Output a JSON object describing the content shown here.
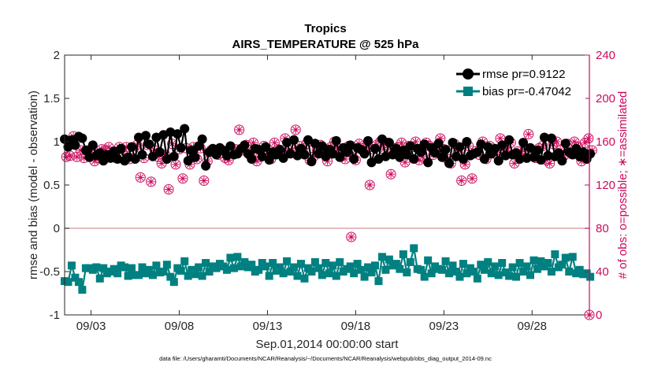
{
  "chart_data": {
    "type": "line",
    "title": "Tropics",
    "subtitle": "AIRS_TEMPERATURE @ 525 hPa",
    "xlabel": "Sep.01,2014 00:00:00 start",
    "ylabel": "rmse and bias (model - observation)",
    "ylabel_right": "# of obs: o=possible; ∗=assimilated",
    "footnote": "data file: /Users/gharamti/Documents/NCAR/Reanalysis/~/Documents/NCAR/Reanalysis/webpub/obs_diag_output_2014-09.nc",
    "xlim": [
      1.5,
      31.25
    ],
    "ylim": [
      -1,
      2
    ],
    "ylim_right": [
      0,
      240
    ],
    "x_ticks": [
      3,
      8,
      13,
      18,
      23,
      28
    ],
    "x_tick_labels": [
      "09/03",
      "09/08",
      "09/13",
      "09/18",
      "09/23",
      "09/28"
    ],
    "y_ticks": [
      -1,
      -0.5,
      0,
      0.5,
      1,
      1.5,
      2
    ],
    "y_tick_labels": [
      "-1",
      "-0.5",
      "0",
      "0.5",
      "1",
      "1.5",
      "2"
    ],
    "y_ticks_right": [
      0,
      40,
      80,
      120,
      160,
      200,
      240
    ],
    "y_tick_labels_right": [
      "0",
      "40",
      "80",
      "120",
      "160",
      "200",
      "240"
    ],
    "zero_line": 0,
    "colors": {
      "rmse": "#000000",
      "bias": "#008080",
      "obs": "#cc0a5c",
      "zero": "#d8a8a8",
      "axis": "#262626"
    },
    "legend_position": "top-right",
    "series": [
      {
        "name": "rmse pr=0.9122",
        "axis": "left",
        "marker": "circle",
        "values": [
          1.03,
          0.94,
          1.02,
          0.96,
          1.06,
          1.04,
          0.9,
          0.82,
          0.96,
          0.84,
          0.87,
          0.78,
          0.85,
          0.81,
          0.89,
          0.8,
          0.92,
          0.78,
          0.82,
          0.94,
          0.8,
          1.05,
          0.85,
          1.07,
          0.97,
          0.83,
          1.05,
          0.88,
          1.08,
          0.8,
          1.11,
          0.83,
          1.09,
          0.93,
          1.15,
          0.78,
          0.9,
          0.82,
          0.95,
          1.03,
          0.72,
          0.88,
          0.92,
          0.85,
          0.93,
          0.9,
          0.84,
          0.95,
          0.85,
          0.86,
          0.92,
          0.96,
          0.86,
          0.8,
          0.92,
          0.91,
          0.83,
          0.94,
          0.79,
          0.88,
          0.85,
          0.91,
          0.81,
          0.99,
          0.86,
          1.02,
          0.84,
          0.92,
          0.85,
          1.02,
          0.77,
          0.98,
          0.86,
          0.95,
          0.83,
          0.91,
          0.86,
          1.01,
          0.82,
          0.93,
          0.88,
          0.96,
          0.8,
          0.93,
          0.91,
          0.86,
          1.01,
          0.76,
          0.92,
          0.8,
          1.03,
          0.83,
          0.99,
          0.85,
          0.92,
          0.82,
          0.9,
          0.85,
          0.95,
          0.8,
          0.92,
          0.88,
          0.97,
          0.76,
          0.93,
          0.87,
          0.98,
          0.82,
          0.91,
          0.75,
          0.99,
          0.83,
          0.94,
          0.8,
          1.0,
          0.84,
          0.86,
          0.88,
          0.97,
          0.8,
          0.94,
          0.86,
          0.92,
          0.78,
          0.96,
          0.84,
          1.02,
          0.85,
          0.87,
          0.8,
          0.99,
          0.81,
          0.93,
          0.82,
          0.9,
          0.79,
          1.05,
          0.84,
          1.04,
          0.83,
          0.87,
          0.78,
          0.98,
          0.88,
          0.85,
          0.92,
          0.83,
          0.88,
          0.8,
          0.86
        ],
        "x_start": 1.5,
        "x_step": 0.2
      },
      {
        "name": "bias pr=-0.47042",
        "axis": "left",
        "marker": "square",
        "values": [
          -0.61,
          -0.62,
          -0.43,
          -0.57,
          -0.62,
          -0.71,
          -0.46,
          -0.46,
          -0.48,
          -0.45,
          -0.58,
          -0.46,
          -0.52,
          -0.5,
          -0.47,
          -0.52,
          -0.43,
          -0.45,
          -0.55,
          -0.46,
          -0.54,
          -0.54,
          -0.45,
          -0.52,
          -0.48,
          -0.54,
          -0.43,
          -0.51,
          -0.5,
          -0.42,
          -0.56,
          -0.62,
          -0.46,
          -0.49,
          -0.38,
          -0.55,
          -0.48,
          -0.53,
          -0.45,
          -0.55,
          -0.4,
          -0.5,
          -0.44,
          -0.46,
          -0.41,
          -0.44,
          -0.48,
          -0.34,
          -0.46,
          -0.33,
          -0.44,
          -0.39,
          -0.45,
          -0.42,
          -0.5,
          -0.48,
          -0.4,
          -0.44,
          -0.55,
          -0.4,
          -0.49,
          -0.45,
          -0.52,
          -0.38,
          -0.5,
          -0.45,
          -0.55,
          -0.41,
          -0.58,
          -0.46,
          -0.5,
          -0.39,
          -0.46,
          -0.54,
          -0.4,
          -0.52,
          -0.43,
          -0.55,
          -0.39,
          -0.5,
          -0.47,
          -0.44,
          -0.52,
          -0.41,
          -0.48,
          -0.56,
          -0.45,
          -0.51,
          -0.43,
          -0.61,
          -0.33,
          -0.48,
          -0.36,
          -0.43,
          -0.41,
          -0.47,
          -0.3,
          -0.51,
          -0.39,
          -0.23,
          -0.47,
          -0.48,
          -0.56,
          -0.37,
          -0.52,
          -0.44,
          -0.47,
          -0.48,
          -0.38,
          -0.52,
          -0.43,
          -0.5,
          -0.56,
          -0.41,
          -0.52,
          -0.46,
          -0.5,
          -0.58,
          -0.42,
          -0.48,
          -0.39,
          -0.52,
          -0.44,
          -0.54,
          -0.4,
          -0.51,
          -0.55,
          -0.45,
          -0.56,
          -0.4,
          -0.5,
          -0.44,
          -0.54,
          -0.37,
          -0.47,
          -0.38,
          -0.44,
          -0.4,
          -0.5,
          -0.3,
          -0.45,
          -0.42,
          -0.34,
          -0.5,
          -0.33,
          -0.52,
          -0.48,
          -0.53,
          -0.52,
          -0.56
        ],
        "x_start": 1.5,
        "x_step": 0.2
      },
      {
        "name": "# of obs possible",
        "axis": "right",
        "marker": "circle-open",
        "values": [
          146,
          147,
          165,
          146,
          152,
          145,
          152,
          152,
          142,
          145,
          153,
          152,
          155,
          148,
          145,
          155,
          149,
          155,
          144,
          153,
          157,
          127,
          145,
          157,
          123,
          152,
          146,
          140,
          148,
          116,
          158,
          139,
          153,
          126,
          154,
          139,
          155,
          144,
          154,
          124,
          142,
          152,
          150,
          148,
          152,
          145,
          143,
          151,
          153,
          171,
          152,
          157,
          148,
          159,
          142,
          146,
          156,
          149,
          144,
          159,
          153,
          150,
          163,
          152,
          150,
          171,
          156,
          152,
          158,
          143,
          146,
          153,
          157,
          150,
          142,
          155,
          160,
          154,
          152,
          144,
          156,
          149,
          143,
          158,
          152,
          156,
          120,
          153,
          157,
          160,
          153,
          159,
          130,
          154,
          155,
          159,
          141,
          156,
          155,
          160,
          143,
          146,
          159,
          156,
          148,
          155,
          163,
          153,
          144,
          140,
          158,
          150,
          124,
          139,
          156,
          126,
          151,
          148,
          160,
          144,
          156,
          152,
          148,
          163,
          154,
          152,
          159,
          140,
          151,
          147,
          153,
          167,
          149,
          145,
          154,
          156,
          143,
          140,
          158,
          160,
          152,
          147,
          158,
          149,
          160,
          155,
          142,
          159,
          163,
          152
        ],
        "x_start": 1.6,
        "x_step": 0.2
      },
      {
        "name": "# of obs assimilated",
        "axis": "right",
        "marker": "asterisk",
        "values": [
          146,
          147,
          165,
          146,
          152,
          145,
          152,
          152,
          142,
          145,
          153,
          152,
          155,
          148,
          145,
          155,
          149,
          155,
          144,
          153,
          157,
          127,
          145,
          157,
          123,
          152,
          146,
          140,
          148,
          116,
          158,
          139,
          153,
          126,
          154,
          139,
          155,
          144,
          154,
          124,
          142,
          152,
          150,
          148,
          152,
          145,
          143,
          151,
          153,
          171,
          152,
          157,
          148,
          159,
          142,
          146,
          156,
          149,
          144,
          159,
          153,
          150,
          163,
          152,
          150,
          171,
          156,
          152,
          158,
          143,
          146,
          153,
          157,
          150,
          142,
          155,
          160,
          154,
          152,
          144,
          156,
          149,
          143,
          158,
          152,
          156,
          120,
          153,
          157,
          160,
          153,
          159,
          130,
          154,
          155,
          159,
          141,
          156,
          155,
          160,
          143,
          146,
          159,
          156,
          148,
          155,
          163,
          153,
          144,
          140,
          158,
          150,
          124,
          139,
          156,
          126,
          151,
          148,
          160,
          144,
          156,
          152,
          148,
          163,
          154,
          152,
          159,
          140,
          151,
          147,
          153,
          167,
          149,
          145,
          154,
          156,
          143,
          140,
          158,
          160,
          152,
          147,
          158,
          149,
          160,
          155,
          142,
          159,
          163,
          152
        ],
        "x_start": 1.6,
        "x_step": 0.2
      }
    ],
    "outliers": [
      {
        "name": "obs-outlier-low",
        "x": 17.75,
        "y_right": 72
      },
      {
        "name": "obs-zero-end",
        "x": 31.25,
        "y_right": 0
      }
    ]
  }
}
